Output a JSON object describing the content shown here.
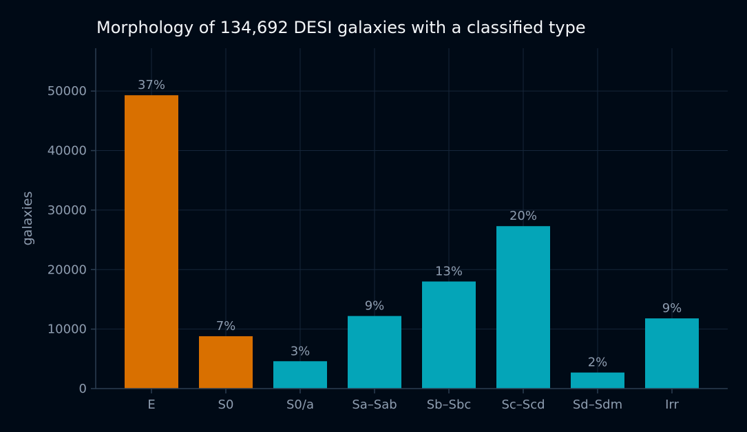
{
  "chart_data": {
    "type": "bar",
    "title": "Morphology of 134,692 DESI galaxies with a classified type",
    "xlabel": "",
    "ylabel": "galaxies",
    "categories": [
      "E",
      "S0",
      "S0/a",
      "Sa–Sab",
      "Sb–Sbc",
      "Sc–Scd",
      "Sd–Sdm",
      "Irr"
    ],
    "values": [
      49300,
      8800,
      4600,
      12200,
      18000,
      27300,
      2700,
      11800
    ],
    "data_labels": [
      "37%",
      "7%",
      "3%",
      "9%",
      "13%",
      "20%",
      "2%",
      "9%"
    ],
    "bar_colors": [
      "#d97000",
      "#d97000",
      "#04a5b8",
      "#04a5b8",
      "#04a5b8",
      "#04a5b8",
      "#04a5b8",
      "#04a5b8"
    ],
    "yticks": [
      0,
      10000,
      20000,
      30000,
      40000,
      50000
    ],
    "ylim": [
      0,
      57200
    ],
    "grid": true,
    "legend": null
  }
}
